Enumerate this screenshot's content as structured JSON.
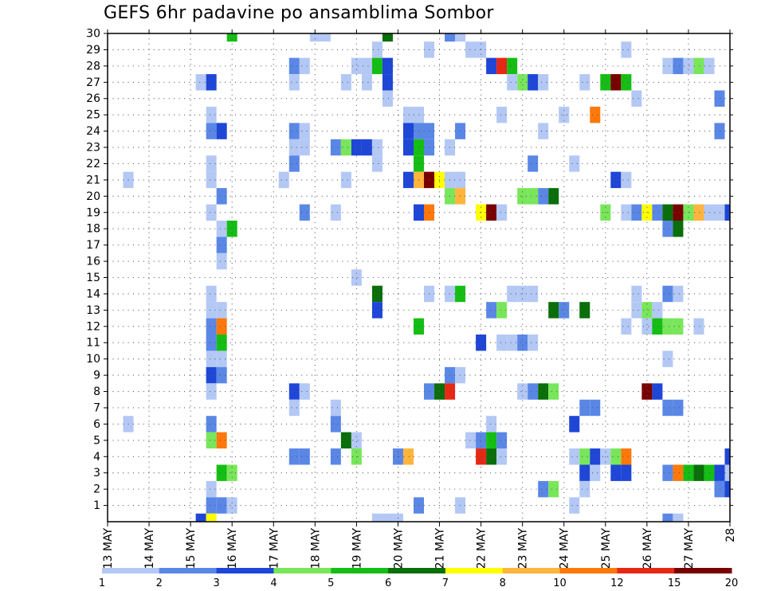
{
  "chart_data": {
    "type": "heatmap",
    "title": "GEFS 6hr padavine po ansamblima Sombor",
    "xlabel": "",
    "ylabel": "",
    "x_tick_labels": [
      "13 MAY",
      "14 MAY",
      "15 MAY",
      "16 MAY",
      "17 MAY",
      "18 MAY",
      "19 MAY",
      "20 MAY",
      "21 MAY",
      "22 MAY",
      "23 MAY",
      "24 MAY",
      "25 MAY",
      "26 MAY",
      "27 MAY",
      "28"
    ],
    "x_range_days": [
      0,
      15
    ],
    "y_tick_labels": [
      "1",
      "2",
      "3",
      "4",
      "5",
      "6",
      "7",
      "8",
      "9",
      "10",
      "11",
      "12",
      "13",
      "14",
      "15",
      "16",
      "17",
      "18",
      "19",
      "20",
      "21",
      "22",
      "23",
      "24",
      "25",
      "26",
      "27",
      "28",
      "29",
      "30"
    ],
    "y_range": [
      0,
      30
    ],
    "grid": true,
    "legend": {
      "placement": "bottom",
      "colors": [
        "#b4c8f5",
        "#5a87e6",
        "#1e46d7",
        "#78e65a",
        "#14be14",
        "#0a6e0a",
        "#ffff00",
        "#ffb43c",
        "#ff780a",
        "#e62814",
        "#780000"
      ],
      "labels": [
        "1",
        "2",
        "3",
        "4",
        "5",
        "6",
        "7",
        "8",
        "10",
        "12",
        "15",
        "20"
      ]
    },
    "cells": [
      [
        3,
        30,
        4
      ],
      [
        5,
        30,
        0
      ],
      [
        5.25,
        30,
        0
      ],
      [
        6.75,
        30,
        5
      ],
      [
        8.25,
        30,
        1
      ],
      [
        8.5,
        30,
        0
      ],
      [
        6.5,
        29,
        0
      ],
      [
        7.75,
        29,
        0
      ],
      [
        8.75,
        29,
        0
      ],
      [
        9,
        29,
        0
      ],
      [
        12.5,
        29,
        0
      ],
      [
        4.5,
        28,
        1
      ],
      [
        4.75,
        28,
        0
      ],
      [
        6,
        28,
        0
      ],
      [
        6.25,
        28,
        0
      ],
      [
        6.5,
        28,
        4
      ],
      [
        6.75,
        28,
        2
      ],
      [
        9.25,
        28,
        2
      ],
      [
        9.5,
        28,
        9
      ],
      [
        9.75,
        28,
        4
      ],
      [
        13.5,
        28,
        0
      ],
      [
        13.75,
        28,
        1
      ],
      [
        14,
        28,
        0
      ],
      [
        14.25,
        28,
        3
      ],
      [
        14.5,
        28,
        0
      ],
      [
        2.25,
        27,
        0
      ],
      [
        2.5,
        27,
        2
      ],
      [
        4.5,
        27,
        0
      ],
      [
        5.75,
        27,
        0
      ],
      [
        6.25,
        27,
        0
      ],
      [
        6.75,
        27,
        2
      ],
      [
        9.75,
        27,
        0
      ],
      [
        10,
        27,
        3
      ],
      [
        10.25,
        27,
        2
      ],
      [
        10.5,
        27,
        0
      ],
      [
        11.5,
        27,
        0
      ],
      [
        12,
        27,
        4
      ],
      [
        12.25,
        27,
        10
      ],
      [
        12.5,
        27,
        4
      ],
      [
        6.75,
        26,
        0
      ],
      [
        12.75,
        26,
        0
      ],
      [
        14.75,
        26,
        1
      ],
      [
        2.5,
        25,
        0
      ],
      [
        7.25,
        25,
        0
      ],
      [
        7.5,
        25,
        0
      ],
      [
        9.5,
        25,
        0
      ],
      [
        11,
        25,
        0
      ],
      [
        11.75,
        25,
        8
      ],
      [
        2.5,
        24,
        1
      ],
      [
        2.75,
        24,
        2
      ],
      [
        4.5,
        24,
        1
      ],
      [
        4.75,
        24,
        0
      ],
      [
        7.25,
        24,
        2
      ],
      [
        7.5,
        24,
        1
      ],
      [
        7.75,
        24,
        1
      ],
      [
        8.5,
        24,
        1
      ],
      [
        10.5,
        24,
        0
      ],
      [
        14.75,
        24,
        1
      ],
      [
        4.5,
        23,
        0
      ],
      [
        4.75,
        23,
        0
      ],
      [
        5.5,
        23,
        1
      ],
      [
        5.75,
        23,
        3
      ],
      [
        6,
        23,
        2
      ],
      [
        6.25,
        23,
        2
      ],
      [
        6.5,
        23,
        0
      ],
      [
        7.25,
        23,
        2
      ],
      [
        7.5,
        23,
        4
      ],
      [
        7.75,
        23,
        1
      ],
      [
        8.25,
        23,
        0
      ],
      [
        2.5,
        22,
        0
      ],
      [
        4.5,
        22,
        1
      ],
      [
        6.5,
        22,
        0
      ],
      [
        7.5,
        22,
        4
      ],
      [
        10.25,
        22,
        1
      ],
      [
        11.25,
        22,
        0
      ],
      [
        0.5,
        21,
        0
      ],
      [
        2.5,
        21,
        0
      ],
      [
        4.25,
        21,
        0
      ],
      [
        5.75,
        21,
        0
      ],
      [
        7.25,
        21,
        2
      ],
      [
        7.5,
        21,
        7
      ],
      [
        7.75,
        21,
        10
      ],
      [
        8,
        21,
        6
      ],
      [
        8.25,
        21,
        0
      ],
      [
        8.5,
        21,
        0
      ],
      [
        12.25,
        21,
        2
      ],
      [
        12.5,
        21,
        0
      ],
      [
        2.75,
        20,
        1
      ],
      [
        8.25,
        20,
        3
      ],
      [
        8.5,
        20,
        7
      ],
      [
        10,
        20,
        3
      ],
      [
        10.25,
        20,
        3
      ],
      [
        10.5,
        20,
        1
      ],
      [
        10.75,
        20,
        5
      ],
      [
        2.5,
        19,
        0
      ],
      [
        4.75,
        19,
        1
      ],
      [
        5.5,
        19,
        0
      ],
      [
        7.5,
        19,
        2
      ],
      [
        7.75,
        19,
        8
      ],
      [
        9,
        19,
        6
      ],
      [
        9.25,
        19,
        10
      ],
      [
        9.5,
        19,
        0
      ],
      [
        12,
        19,
        3
      ],
      [
        12.5,
        19,
        0
      ],
      [
        12.75,
        19,
        1
      ],
      [
        13,
        19,
        6
      ],
      [
        13.25,
        19,
        1
      ],
      [
        13.5,
        19,
        5
      ],
      [
        13.75,
        19,
        10
      ],
      [
        14,
        19,
        3
      ],
      [
        14.25,
        19,
        7
      ],
      [
        14.5,
        19,
        0
      ],
      [
        14.75,
        19,
        0
      ],
      [
        15,
        19,
        2
      ],
      [
        2.75,
        18,
        0
      ],
      [
        3,
        18,
        4
      ],
      [
        13.5,
        18,
        1
      ],
      [
        13.75,
        18,
        5
      ],
      [
        2.75,
        17,
        1
      ],
      [
        2.75,
        16,
        0
      ],
      [
        6,
        15,
        0
      ],
      [
        2.5,
        14,
        0
      ],
      [
        6.5,
        14,
        5
      ],
      [
        7.75,
        14,
        0
      ],
      [
        8.25,
        14,
        0
      ],
      [
        8.5,
        14,
        4
      ],
      [
        9.75,
        14,
        0
      ],
      [
        10,
        14,
        0
      ],
      [
        10.25,
        14,
        0
      ],
      [
        12.75,
        14,
        0
      ],
      [
        13.5,
        14,
        1
      ],
      [
        13.75,
        14,
        0
      ],
      [
        2.5,
        13,
        0
      ],
      [
        2.75,
        13,
        0
      ],
      [
        6.5,
        13,
        2
      ],
      [
        9.25,
        13,
        1
      ],
      [
        9.5,
        13,
        3
      ],
      [
        10.75,
        13,
        5
      ],
      [
        11,
        13,
        1
      ],
      [
        11.5,
        13,
        5
      ],
      [
        12.75,
        13,
        0
      ],
      [
        13,
        13,
        3
      ],
      [
        13.25,
        13,
        0
      ],
      [
        2.5,
        12,
        1
      ],
      [
        2.75,
        12,
        8
      ],
      [
        7.5,
        12,
        4
      ],
      [
        12.5,
        12,
        0
      ],
      [
        13,
        12,
        0
      ],
      [
        13.25,
        12,
        4
      ],
      [
        13.5,
        12,
        3
      ],
      [
        13.75,
        12,
        3
      ],
      [
        14.25,
        12,
        0
      ],
      [
        2.5,
        11,
        1
      ],
      [
        2.75,
        11,
        4
      ],
      [
        9,
        11,
        2
      ],
      [
        9.5,
        11,
        0
      ],
      [
        9.75,
        11,
        0
      ],
      [
        10,
        11,
        1
      ],
      [
        10.25,
        11,
        0
      ],
      [
        2.5,
        10,
        0
      ],
      [
        2.75,
        10,
        0
      ],
      [
        13.5,
        10,
        0
      ],
      [
        2.5,
        9,
        2
      ],
      [
        2.75,
        9,
        1
      ],
      [
        8.25,
        9,
        1
      ],
      [
        8.5,
        9,
        0
      ],
      [
        2.5,
        8,
        0
      ],
      [
        4.5,
        8,
        2
      ],
      [
        4.75,
        8,
        0
      ],
      [
        7.75,
        8,
        1
      ],
      [
        8,
        8,
        5
      ],
      [
        8.25,
        8,
        9
      ],
      [
        10,
        8,
        0
      ],
      [
        10.25,
        8,
        1
      ],
      [
        10.5,
        8,
        5
      ],
      [
        10.75,
        8,
        3
      ],
      [
        13,
        8,
        10
      ],
      [
        13.25,
        8,
        2
      ],
      [
        4.5,
        7,
        0
      ],
      [
        5.5,
        7,
        0
      ],
      [
        11.5,
        7,
        1
      ],
      [
        11.75,
        7,
        1
      ],
      [
        13.5,
        7,
        1
      ],
      [
        13.75,
        7,
        1
      ],
      [
        0.5,
        6,
        0
      ],
      [
        2.5,
        6,
        1
      ],
      [
        5.5,
        6,
        1
      ],
      [
        9.25,
        6,
        0
      ],
      [
        11.25,
        6,
        2
      ],
      [
        2.5,
        5,
        3
      ],
      [
        2.75,
        5,
        8
      ],
      [
        5.75,
        5,
        5
      ],
      [
        6,
        5,
        0
      ],
      [
        8.75,
        5,
        0
      ],
      [
        9,
        5,
        1
      ],
      [
        9.25,
        5,
        4
      ],
      [
        9.5,
        5,
        1
      ],
      [
        4.5,
        4,
        1
      ],
      [
        4.75,
        4,
        1
      ],
      [
        5.5,
        4,
        1
      ],
      [
        6,
        4,
        3
      ],
      [
        7,
        4,
        1
      ],
      [
        7.25,
        4,
        7
      ],
      [
        9,
        4,
        9
      ],
      [
        9.25,
        4,
        5
      ],
      [
        9.5,
        4,
        0
      ],
      [
        11.25,
        4,
        0
      ],
      [
        11.5,
        4,
        3
      ],
      [
        11.75,
        4,
        2
      ],
      [
        12,
        4,
        0
      ],
      [
        12.25,
        4,
        3
      ],
      [
        12.5,
        4,
        8
      ],
      [
        15,
        4,
        2
      ],
      [
        2.75,
        3,
        4
      ],
      [
        3,
        3,
        3
      ],
      [
        11.5,
        3,
        2
      ],
      [
        11.75,
        3,
        0
      ],
      [
        12.25,
        3,
        2
      ],
      [
        12.5,
        3,
        2
      ],
      [
        13.5,
        3,
        1
      ],
      [
        13.75,
        3,
        8
      ],
      [
        14,
        3,
        4
      ],
      [
        14.25,
        3,
        5
      ],
      [
        14.5,
        3,
        4
      ],
      [
        14.75,
        3,
        2
      ],
      [
        15,
        3,
        0
      ],
      [
        2.5,
        2,
        0
      ],
      [
        10.5,
        2,
        1
      ],
      [
        10.75,
        2,
        3
      ],
      [
        11.5,
        2,
        0
      ],
      [
        14.75,
        2,
        1
      ],
      [
        15,
        2,
        2
      ],
      [
        2.5,
        1,
        1
      ],
      [
        2.75,
        1,
        1
      ],
      [
        3,
        1,
        0
      ],
      [
        7.5,
        1,
        1
      ],
      [
        8.5,
        1,
        0
      ],
      [
        11.25,
        1,
        0
      ],
      [
        2.25,
        0,
        2
      ],
      [
        2.5,
        0,
        6
      ],
      [
        6.5,
        0,
        0
      ],
      [
        6.75,
        0,
        0
      ],
      [
        7,
        0,
        0
      ],
      [
        13.5,
        0,
        1
      ],
      [
        13.75,
        0,
        0
      ]
    ]
  }
}
